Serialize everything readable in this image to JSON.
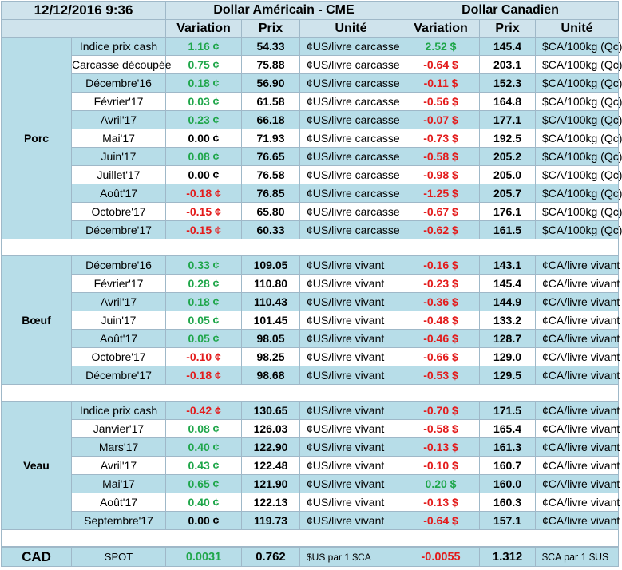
{
  "header": {
    "date": "12/12/2016 9:36",
    "usd_title": "Dollar Américain - CME",
    "cad_title": "Dollar Canadien",
    "col_variation": "Variation",
    "col_prix": "Prix",
    "col_unite": "Unité"
  },
  "sections": [
    {
      "name": "Porc",
      "rows": [
        {
          "label": "Indice prix cash",
          "usd_var": "1.16 ¢",
          "usd_var_sign": "pos",
          "usd_price": "54.33",
          "usd_unit": "¢US/livre carcasse",
          "cad_var": "2.52 $",
          "cad_var_sign": "pos",
          "cad_price": "145.4",
          "cad_unit": "$CA/100kg (Qc)"
        },
        {
          "label": "Carcasse découpée",
          "usd_var": "0.75 ¢",
          "usd_var_sign": "pos",
          "usd_price": "75.88",
          "usd_unit": "¢US/livre carcasse",
          "cad_var": "-0.64 $",
          "cad_var_sign": "neg",
          "cad_price": "203.1",
          "cad_unit": "$CA/100kg (Qc)"
        },
        {
          "label": "Décembre'16",
          "usd_var": "0.18 ¢",
          "usd_var_sign": "pos",
          "usd_price": "56.90",
          "usd_unit": "¢US/livre carcasse",
          "cad_var": "-0.11 $",
          "cad_var_sign": "neg",
          "cad_price": "152.3",
          "cad_unit": "$CA/100kg (Qc)"
        },
        {
          "label": "Février'17",
          "usd_var": "0.03 ¢",
          "usd_var_sign": "pos",
          "usd_price": "61.58",
          "usd_unit": "¢US/livre carcasse",
          "cad_var": "-0.56 $",
          "cad_var_sign": "neg",
          "cad_price": "164.8",
          "cad_unit": "$CA/100kg (Qc)"
        },
        {
          "label": "Avril'17",
          "usd_var": "0.23 ¢",
          "usd_var_sign": "pos",
          "usd_price": "66.18",
          "usd_unit": "¢US/livre carcasse",
          "cad_var": "-0.07 $",
          "cad_var_sign": "neg",
          "cad_price": "177.1",
          "cad_unit": "$CA/100kg (Qc)"
        },
        {
          "label": "Mai'17",
          "usd_var": "0.00 ¢",
          "usd_var_sign": "zero",
          "usd_price": "71.93",
          "usd_unit": "¢US/livre carcasse",
          "cad_var": "-0.73 $",
          "cad_var_sign": "neg",
          "cad_price": "192.5",
          "cad_unit": "$CA/100kg (Qc)"
        },
        {
          "label": "Juin'17",
          "usd_var": "0.08 ¢",
          "usd_var_sign": "pos",
          "usd_price": "76.65",
          "usd_unit": "¢US/livre carcasse",
          "cad_var": "-0.58 $",
          "cad_var_sign": "neg",
          "cad_price": "205.2",
          "cad_unit": "$CA/100kg (Qc)"
        },
        {
          "label": "Juillet'17",
          "usd_var": "0.00 ¢",
          "usd_var_sign": "zero",
          "usd_price": "76.58",
          "usd_unit": "¢US/livre carcasse",
          "cad_var": "-0.98 $",
          "cad_var_sign": "neg",
          "cad_price": "205.0",
          "cad_unit": "$CA/100kg (Qc)"
        },
        {
          "label": "Août'17",
          "usd_var": "-0.18 ¢",
          "usd_var_sign": "neg",
          "usd_price": "76.85",
          "usd_unit": "¢US/livre carcasse",
          "cad_var": "-1.25 $",
          "cad_var_sign": "neg",
          "cad_price": "205.7",
          "cad_unit": "$CA/100kg (Qc)"
        },
        {
          "label": "Octobre'17",
          "usd_var": "-0.15 ¢",
          "usd_var_sign": "neg",
          "usd_price": "65.80",
          "usd_unit": "¢US/livre carcasse",
          "cad_var": "-0.67 $",
          "cad_var_sign": "neg",
          "cad_price": "176.1",
          "cad_unit": "$CA/100kg (Qc)"
        },
        {
          "label": "Décembre'17",
          "usd_var": "-0.15 ¢",
          "usd_var_sign": "neg",
          "usd_price": "60.33",
          "usd_unit": "¢US/livre carcasse",
          "cad_var": "-0.62 $",
          "cad_var_sign": "neg",
          "cad_price": "161.5",
          "cad_unit": "$CA/100kg (Qc)"
        }
      ]
    },
    {
      "name": "Bœuf",
      "rows": [
        {
          "label": "Décembre'16",
          "usd_var": "0.33 ¢",
          "usd_var_sign": "pos",
          "usd_price": "109.05",
          "usd_unit": "¢US/livre vivant",
          "cad_var": "-0.16 $",
          "cad_var_sign": "neg",
          "cad_price": "143.1",
          "cad_unit": "¢CA/livre vivant"
        },
        {
          "label": "Février'17",
          "usd_var": "0.28 ¢",
          "usd_var_sign": "pos",
          "usd_price": "110.80",
          "usd_unit": "¢US/livre vivant",
          "cad_var": "-0.23 $",
          "cad_var_sign": "neg",
          "cad_price": "145.4",
          "cad_unit": "¢CA/livre vivant"
        },
        {
          "label": "Avril'17",
          "usd_var": "0.18 ¢",
          "usd_var_sign": "pos",
          "usd_price": "110.43",
          "usd_unit": "¢US/livre vivant",
          "cad_var": "-0.36 $",
          "cad_var_sign": "neg",
          "cad_price": "144.9",
          "cad_unit": "¢CA/livre vivant"
        },
        {
          "label": "Juin'17",
          "usd_var": "0.05 ¢",
          "usd_var_sign": "pos",
          "usd_price": "101.45",
          "usd_unit": "¢US/livre vivant",
          "cad_var": "-0.48 $",
          "cad_var_sign": "neg",
          "cad_price": "133.2",
          "cad_unit": "¢CA/livre vivant"
        },
        {
          "label": "Août'17",
          "usd_var": "0.05 ¢",
          "usd_var_sign": "pos",
          "usd_price": "98.05",
          "usd_unit": "¢US/livre vivant",
          "cad_var": "-0.46 $",
          "cad_var_sign": "neg",
          "cad_price": "128.7",
          "cad_unit": "¢CA/livre vivant"
        },
        {
          "label": "Octobre'17",
          "usd_var": "-0.10 ¢",
          "usd_var_sign": "neg",
          "usd_price": "98.25",
          "usd_unit": "¢US/livre vivant",
          "cad_var": "-0.66 $",
          "cad_var_sign": "neg",
          "cad_price": "129.0",
          "cad_unit": "¢CA/livre vivant"
        },
        {
          "label": "Décembre'17",
          "usd_var": "-0.18 ¢",
          "usd_var_sign": "neg",
          "usd_price": "98.68",
          "usd_unit": "¢US/livre vivant",
          "cad_var": "-0.53 $",
          "cad_var_sign": "neg",
          "cad_price": "129.5",
          "cad_unit": "¢CA/livre vivant"
        }
      ]
    },
    {
      "name": "Veau",
      "rows": [
        {
          "label": "Indice prix cash",
          "usd_var": "-0.42 ¢",
          "usd_var_sign": "neg",
          "usd_price": "130.65",
          "usd_unit": "¢US/livre vivant",
          "cad_var": "-0.70 $",
          "cad_var_sign": "neg",
          "cad_price": "171.5",
          "cad_unit": "¢CA/livre vivant"
        },
        {
          "label": "Janvier'17",
          "usd_var": "0.08 ¢",
          "usd_var_sign": "pos",
          "usd_price": "126.03",
          "usd_unit": "¢US/livre vivant",
          "cad_var": "-0.58 $",
          "cad_var_sign": "neg",
          "cad_price": "165.4",
          "cad_unit": "¢CA/livre vivant"
        },
        {
          "label": "Mars'17",
          "usd_var": "0.40 ¢",
          "usd_var_sign": "pos",
          "usd_price": "122.90",
          "usd_unit": "¢US/livre vivant",
          "cad_var": "-0.13 $",
          "cad_var_sign": "neg",
          "cad_price": "161.3",
          "cad_unit": "¢CA/livre vivant"
        },
        {
          "label": "Avril'17",
          "usd_var": "0.43 ¢",
          "usd_var_sign": "pos",
          "usd_price": "122.48",
          "usd_unit": "¢US/livre vivant",
          "cad_var": "-0.10 $",
          "cad_var_sign": "neg",
          "cad_price": "160.7",
          "cad_unit": "¢CA/livre vivant"
        },
        {
          "label": "Mai'17",
          "usd_var": "0.65 ¢",
          "usd_var_sign": "pos",
          "usd_price": "121.90",
          "usd_unit": "¢US/livre vivant",
          "cad_var": "0.20 $",
          "cad_var_sign": "pos",
          "cad_price": "160.0",
          "cad_unit": "¢CA/livre vivant"
        },
        {
          "label": "Août'17",
          "usd_var": "0.40 ¢",
          "usd_var_sign": "pos",
          "usd_price": "122.13",
          "usd_unit": "¢US/livre vivant",
          "cad_var": "-0.13 $",
          "cad_var_sign": "neg",
          "cad_price": "160.3",
          "cad_unit": "¢CA/livre vivant"
        },
        {
          "label": "Septembre'17",
          "usd_var": "0.00 ¢",
          "usd_var_sign": "zero",
          "usd_price": "119.73",
          "usd_unit": "¢US/livre vivant",
          "cad_var": "-0.64 $",
          "cad_var_sign": "neg",
          "cad_price": "157.1",
          "cad_unit": "¢CA/livre vivant"
        }
      ]
    }
  ],
  "cad": {
    "name": "CAD",
    "label": "SPOT",
    "usd_var": "0.0031",
    "usd_var_sign": "pos",
    "usd_price": "0.762",
    "usd_unit": "$US par 1 $CA",
    "cad_var": "-0.0055",
    "cad_var_sign": "neg",
    "cad_price": "1.312",
    "cad_unit": "$CA par 1 $US"
  },
  "colors": {
    "positive": "#1fa64a",
    "negative": "#e31b1b",
    "band": "#b7dde8",
    "header": "#cfe3ec"
  }
}
